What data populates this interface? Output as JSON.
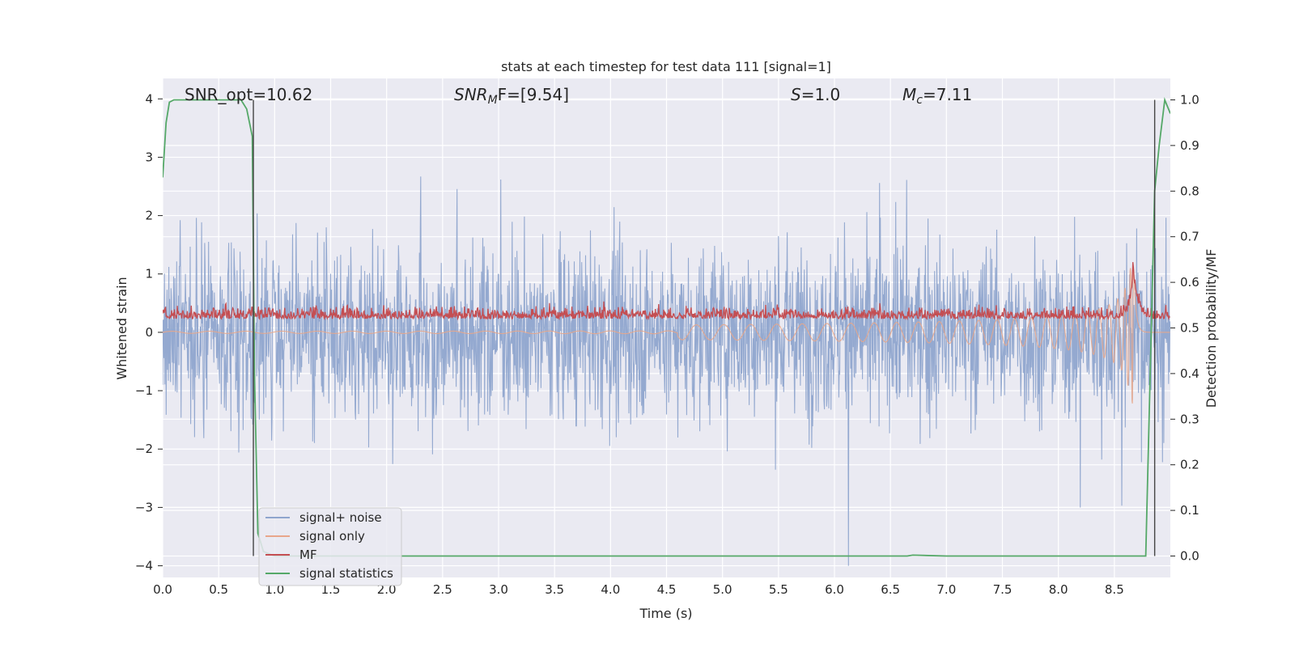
{
  "chart_data": {
    "type": "line",
    "title": "stats at each timestep for test data 111 [signal=1]",
    "xlabel": "Time (s)",
    "ylabel": "Whitened strain",
    "ylabel_right": "Detection probability/MF",
    "xlim": [
      0.0,
      9.0
    ],
    "ylim": [
      -4.2,
      4.35
    ],
    "ylim_right": [
      -0.047,
      1.047
    ],
    "x_ticks": [
      0.0,
      0.5,
      1.0,
      1.5,
      2.0,
      2.5,
      3.0,
      3.5,
      4.0,
      4.5,
      5.0,
      5.5,
      6.0,
      6.5,
      7.0,
      7.5,
      8.0,
      8.5
    ],
    "x_tick_labels": [
      "0.0",
      "0.5",
      "1.0",
      "1.5",
      "2.0",
      "2.5",
      "3.0",
      "3.5",
      "4.0",
      "4.5",
      "5.0",
      "5.5",
      "6.0",
      "6.5",
      "7.0",
      "7.5",
      "8.0",
      "8.5"
    ],
    "y_ticks": [
      -4,
      -3,
      -2,
      -1,
      0,
      1,
      2,
      3,
      4
    ],
    "y_tick_labels": [
      "−4",
      "−3",
      "−2",
      "−1",
      "0",
      "1",
      "2",
      "3",
      "4"
    ],
    "y2_ticks": [
      0.0,
      0.1,
      0.2,
      0.3,
      0.4,
      0.5,
      0.6,
      0.7,
      0.8,
      0.9,
      1.0
    ],
    "y2_tick_labels": [
      "0.0",
      "0.1",
      "0.2",
      "0.3",
      "0.4",
      "0.5",
      "0.6",
      "0.7",
      "0.8",
      "0.9",
      "1.0"
    ],
    "grid": true,
    "legend_position": "lower-left",
    "annotations": [
      {
        "text": "SNR_opt=10.62"
      },
      {
        "base": "SNR",
        "sub": "M",
        "tail": "F=[9.54]"
      },
      {
        "base": "S",
        "tail": "=1.0"
      },
      {
        "base": "M",
        "sub": "c",
        "tail": "=7.11"
      }
    ],
    "vertical_lines_x": [
      0.81,
      8.86
    ],
    "series": [
      {
        "name": "signal+ noise",
        "color": "#8fa5cd",
        "axis": "left",
        "description": "noisy whitened strain, approx. band -1.5 to 1.5 with spikes to about +/-4",
        "sample_rate_hz": 2048,
        "duration_s": 9.0,
        "noise_core_std": 0.75,
        "noise_spike_max": 4.0
      },
      {
        "name": "signal only",
        "color": "#e8a68a",
        "axis": "left",
        "description": "chirp signal growing in amplitude, merger near 8.67 s",
        "merger_time_s": 8.67,
        "peak_amplitude": [
          -1.5,
          1.1
        ]
      },
      {
        "name": "MF",
        "color": "#c44e52",
        "axis": "right",
        "description": "matched filter output around 0.52 with peak near 8.67 s",
        "baseline": 0.52,
        "peak_x": 8.67,
        "peak_value": 0.63
      },
      {
        "name": "signal statistics",
        "color": "#55a868",
        "axis": "right",
        "x": [
          0.0,
          0.03,
          0.06,
          0.1,
          0.2,
          0.4,
          0.6,
          0.7,
          0.75,
          0.8,
          0.82,
          0.85,
          0.9,
          1.0,
          2.0,
          3.0,
          4.0,
          5.0,
          6.0,
          6.65,
          6.7,
          7.0,
          8.0,
          8.5,
          8.7,
          8.78,
          8.82,
          8.86,
          8.9,
          8.95,
          9.0
        ],
        "y": [
          0.83,
          0.95,
          0.995,
          1.0,
          1.0,
          1.0,
          1.0,
          1.0,
          0.98,
          0.92,
          0.4,
          0.05,
          0.01,
          0.0,
          0.0,
          0.0,
          0.0,
          0.0,
          0.0,
          0.0,
          0.002,
          0.0,
          0.0,
          0.0,
          0.0,
          0.0,
          0.4,
          0.8,
          0.9,
          1.0,
          0.97
        ]
      }
    ]
  }
}
